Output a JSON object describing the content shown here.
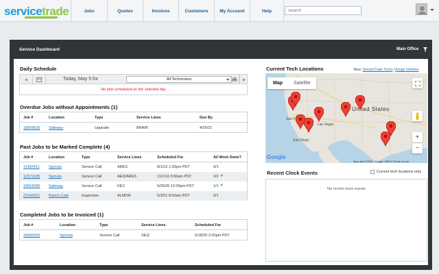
{
  "logo": {
    "part1": "service",
    "part2": "trade"
  },
  "nav": [
    "Jobs",
    "Quotes",
    "Invoices",
    "Customers",
    "My Account",
    "Help"
  ],
  "search": {
    "placeholder": "Search"
  },
  "dashboard": {
    "title": "Service Dashboard",
    "office": "Main Office"
  },
  "schedule": {
    "title": "Daily Schedule",
    "date": "Today, May 5 for",
    "technician": "All Technicians",
    "empty": "No jobs scheduled on the selected day"
  },
  "overdue": {
    "title": "Overdue Jobs without Appointments (1)",
    "headers": [
      "Job #",
      "Location",
      "Type",
      "Service Lines",
      "Due By"
    ],
    "rows": [
      [
        "18909625",
        "Safeway",
        "Upgrade",
        "BRAIR",
        "4/26/21"
      ]
    ]
  },
  "past": {
    "title": "Past Jobs to be Marked Complete (4)",
    "headers": [
      "Job #",
      "Location",
      "Type",
      "Service Lines",
      "Scheduled For",
      "All Work Done?"
    ],
    "rows": [
      [
        "11402411",
        "Sprouts",
        "Service Call",
        "ARES",
        "8/1/16 1:30pm PDT",
        "0/1",
        ""
      ],
      [
        "12572185",
        "Sprouts",
        "Service Call",
        "AED/ARES",
        "11/1/16 5:00am PST",
        "2/2",
        "✔"
      ],
      [
        "18915090",
        "Safeway",
        "Service Call",
        "KEC",
        "5/26/20 12:00pm PDT",
        "1/1",
        "✔"
      ],
      [
        "21543421",
        "Ranch Cafe",
        "Inspection",
        "ALMON",
        "5/3/21 8:00am PDT",
        "0/1",
        ""
      ]
    ]
  },
  "invoiced": {
    "title": "Completed Jobs to be Invoiced (1)",
    "headers": [
      "Job #",
      "Location",
      "Type",
      "Service Lines",
      "Scheduled For"
    ],
    "rows": [
      [
        "18655392",
        "Sprouts",
        "Service Call",
        "SEQ",
        "5/18/20 2:00pm PDT"
      ]
    ]
  },
  "map": {
    "title": "Current Tech Locations",
    "view_prefix": "View:",
    "view_link1": "ServiceTrade Techs",
    "view_sep": "|",
    "view_link2": "Azuga Vehicles",
    "tab_map": "Map",
    "tab_satellite": "Satellite",
    "label_us": "United States",
    "label_sf": "San Francisco",
    "label_lv": "Las Vegas",
    "label_sd": "San Diego",
    "google": "Google",
    "footer": "Map data ©2021 Google, INEGI  Terms of Use",
    "colors": {
      "land": "#e8e5de",
      "water": "#b7d4e6",
      "pin": "#ea4335",
      "pin_dark": "#b31412"
    },
    "pins": 8
  },
  "clock": {
    "title": "Recent Clock Events",
    "checkbox_label": "Current tech locations only",
    "empty": "No recent clock events"
  }
}
